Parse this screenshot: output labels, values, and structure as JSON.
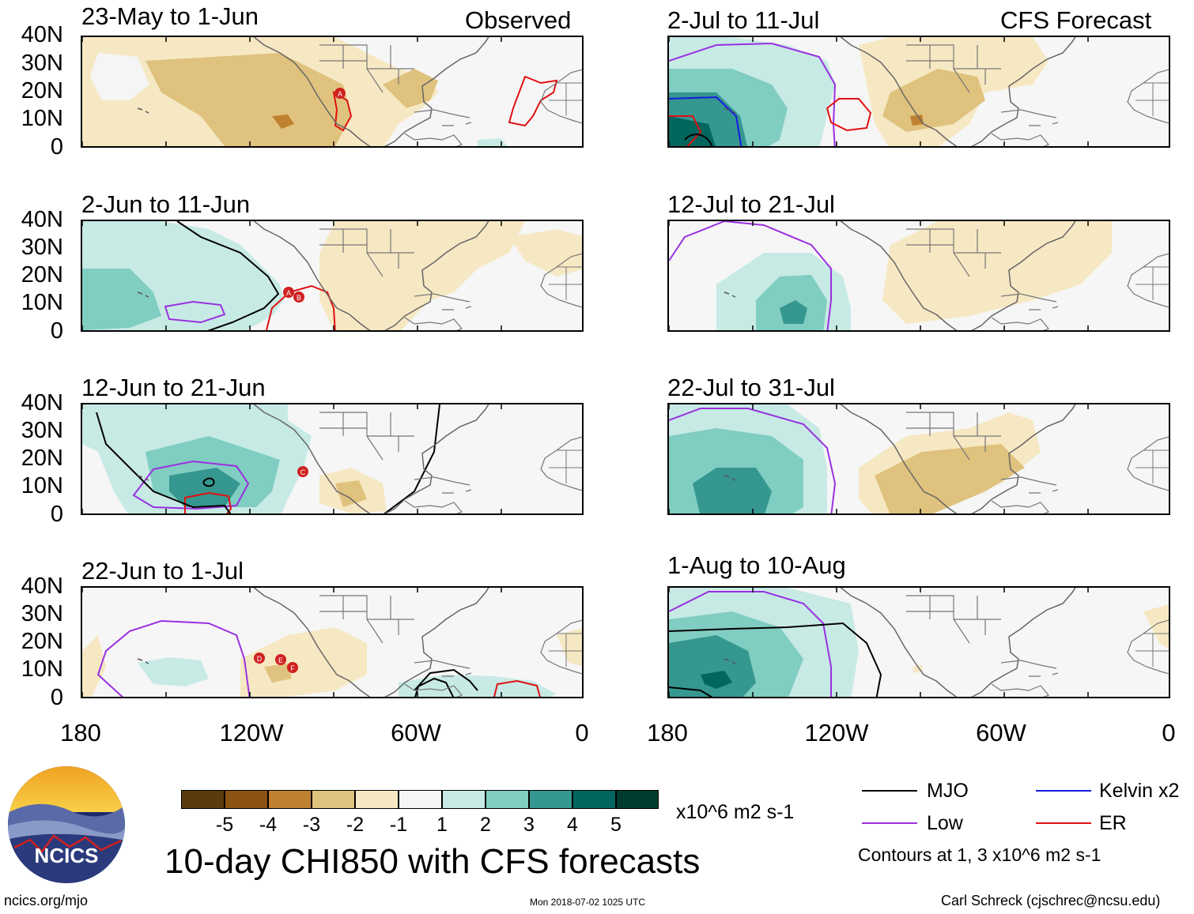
{
  "headers": {
    "left": "Observed",
    "right": "CFS Forecast"
  },
  "panels": [
    {
      "title": "23-May to 1-Jun"
    },
    {
      "title": "2-Jun to 11-Jun"
    },
    {
      "title": "12-Jun to 21-Jun"
    },
    {
      "title": "22-Jun to 1-Jul"
    },
    {
      "title": "2-Jul to 11-Jul"
    },
    {
      "title": "12-Jul to 21-Jul"
    },
    {
      "title": "22-Jul to 31-Jul"
    },
    {
      "title": "1-Aug to 10-Aug"
    }
  ],
  "y_ticks": [
    "40N",
    "30N",
    "20N",
    "10N",
    "0"
  ],
  "x_ticks": [
    "180",
    "120W",
    "60W",
    "0"
  ],
  "colorbar": {
    "colors": [
      "#5a3a0e",
      "#8c5313",
      "#bf8130",
      "#dfc27d",
      "#f6e8c3",
      "#f5f5f5",
      "#c7eae5",
      "#80cdc1",
      "#35978f",
      "#01665e",
      "#003c30"
    ],
    "labels": [
      "-5",
      "-4",
      "-3",
      "-2",
      "-1",
      "1",
      "2",
      "3",
      "4",
      "5"
    ],
    "units": "x10^6 m2 s-1"
  },
  "legend": {
    "items": [
      {
        "label": "MJO",
        "color": "#000000"
      },
      {
        "label": "Kelvin x2",
        "color": "#1a1ae0"
      },
      {
        "label": "Low",
        "color": "#9a30e0"
      },
      {
        "label": "ER",
        "color": "#e01010"
      }
    ],
    "note": "Contours at 1, 3 x10^6 m2 s-1"
  },
  "logo_text": "NCICS",
  "main_title": "10-day CHI850 with CFS forecasts",
  "footer": {
    "url": "ncics.org/mjo",
    "timestamp": "Mon 2018-07-02 1025 UTC",
    "author": "Carl Schreck (cjschrec@ncsu.edu)"
  },
  "storms": [
    "A",
    "A",
    "B",
    "C",
    "D",
    "E",
    "F"
  ]
}
